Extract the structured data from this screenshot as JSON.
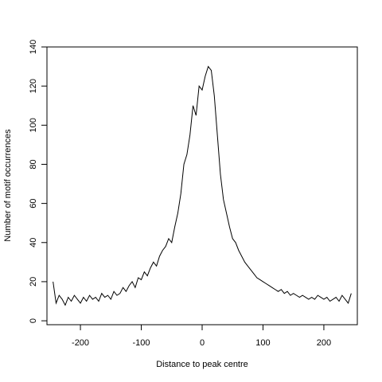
{
  "chart_data": {
    "type": "line",
    "title": "",
    "xlabel": "Distance to peak centre",
    "ylabel": "Number of motif occurrences",
    "xlim": [
      -255,
      255
    ],
    "ylim": [
      -2,
      140
    ],
    "xticks": [
      -200,
      -100,
      0,
      100,
      200
    ],
    "yticks": [
      0,
      20,
      40,
      60,
      80,
      100,
      120,
      140
    ],
    "grid": false,
    "legend": "none",
    "line_color": "#000000",
    "series": [
      {
        "x": [
          -245,
          -240,
          -235,
          -230,
          -225,
          -220,
          -215,
          -210,
          -205,
          -200,
          -195,
          -190,
          -185,
          -180,
          -175,
          -170,
          -165,
          -160,
          -155,
          -150,
          -145,
          -140,
          -135,
          -130,
          -125,
          -120,
          -115,
          -110,
          -105,
          -100,
          -95,
          -90,
          -85,
          -80,
          -75,
          -70,
          -65,
          -60,
          -55,
          -50,
          -45,
          -40,
          -35,
          -30,
          -25,
          -20,
          -15,
          -10,
          -5,
          0,
          5,
          10,
          15,
          20,
          25,
          30,
          35,
          40,
          45,
          50,
          55,
          60,
          65,
          70,
          75,
          80,
          85,
          90,
          95,
          100,
          105,
          110,
          115,
          120,
          125,
          130,
          135,
          140,
          145,
          150,
          155,
          160,
          165,
          170,
          175,
          180,
          185,
          190,
          195,
          200,
          205,
          210,
          215,
          220,
          225,
          230,
          235,
          240,
          245
        ],
        "values": [
          20,
          9,
          13,
          11,
          8,
          12,
          10,
          13,
          11,
          9,
          12,
          10,
          13,
          11,
          12,
          10,
          14,
          12,
          13,
          11,
          15,
          13,
          14,
          17,
          15,
          18,
          20,
          17,
          22,
          21,
          25,
          23,
          27,
          30,
          28,
          33,
          36,
          38,
          42,
          40,
          48,
          55,
          65,
          80,
          85,
          95,
          110,
          105,
          120,
          118,
          125,
          130,
          128,
          115,
          95,
          75,
          62,
          55,
          48,
          42,
          40,
          36,
          33,
          30,
          28,
          26,
          24,
          22,
          21,
          20,
          19,
          18,
          17,
          16,
          15,
          16,
          14,
          15,
          13,
          14,
          13,
          12,
          13,
          12,
          11,
          12,
          11,
          13,
          12,
          11,
          12,
          10,
          11,
          12,
          10,
          13,
          11,
          9,
          14
        ]
      }
    ]
  }
}
